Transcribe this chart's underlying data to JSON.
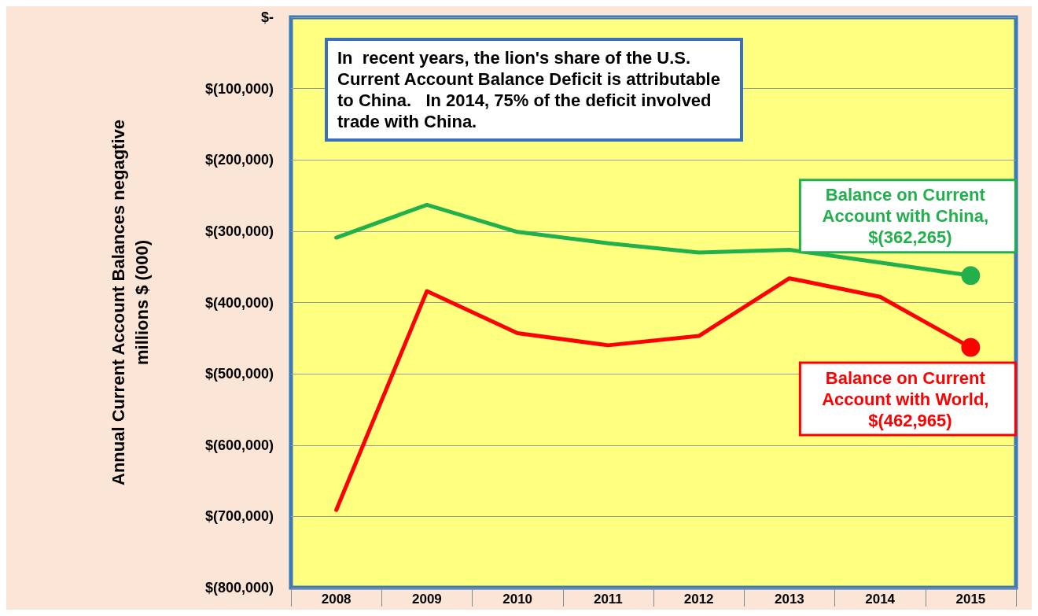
{
  "chart_data": {
    "type": "line",
    "ylabel": "Annual Current Account Balances negagtive\nmillions $ (000)",
    "categories": [
      "2008",
      "2009",
      "2010",
      "2011",
      "2012",
      "2013",
      "2014",
      "2015"
    ],
    "series": [
      {
        "name": "Balance on Current Account with China,",
        "color": "#22b04c",
        "values": [
          -309000,
          -263000,
          -301000,
          -317000,
          -330000,
          -326000,
          -344000,
          -362265
        ],
        "value_labels": [
          null,
          null,
          null,
          null,
          null,
          null,
          null,
          "$(362,265)"
        ]
      },
      {
        "name": "Balance on Current Account with World,",
        "color": "#ff0000",
        "values": [
          -691000,
          -384000,
          -443000,
          -460000,
          -447000,
          -366000,
          -392000,
          -462965
        ],
        "value_labels": [
          null,
          null,
          null,
          null,
          null,
          null,
          null,
          "$(462,965)"
        ]
      }
    ],
    "ylim": [
      -800000,
      0
    ],
    "yticks": [
      {
        "value": 0,
        "label": "$-"
      },
      {
        "value": -100000,
        "label": "$(100,000)"
      },
      {
        "value": -200000,
        "label": "$(200,000)"
      },
      {
        "value": -300000,
        "label": "$(300,000)"
      },
      {
        "value": -400000,
        "label": "$(400,000)"
      },
      {
        "value": -500000,
        "label": "$(500,000)"
      },
      {
        "value": -600000,
        "label": "$(600,000)"
      },
      {
        "value": -700000,
        "label": "$(700,000)"
      },
      {
        "value": -800000,
        "label": "$(800,000)"
      }
    ],
    "grid": "y",
    "legend": false,
    "line_style": "solid",
    "annotations": [
      "In  recent years, the lion's share of the U.S. Current Account Balance Deficit is attributable to China.   In 2014, 75% of the deficit involved trade with China."
    ]
  }
}
